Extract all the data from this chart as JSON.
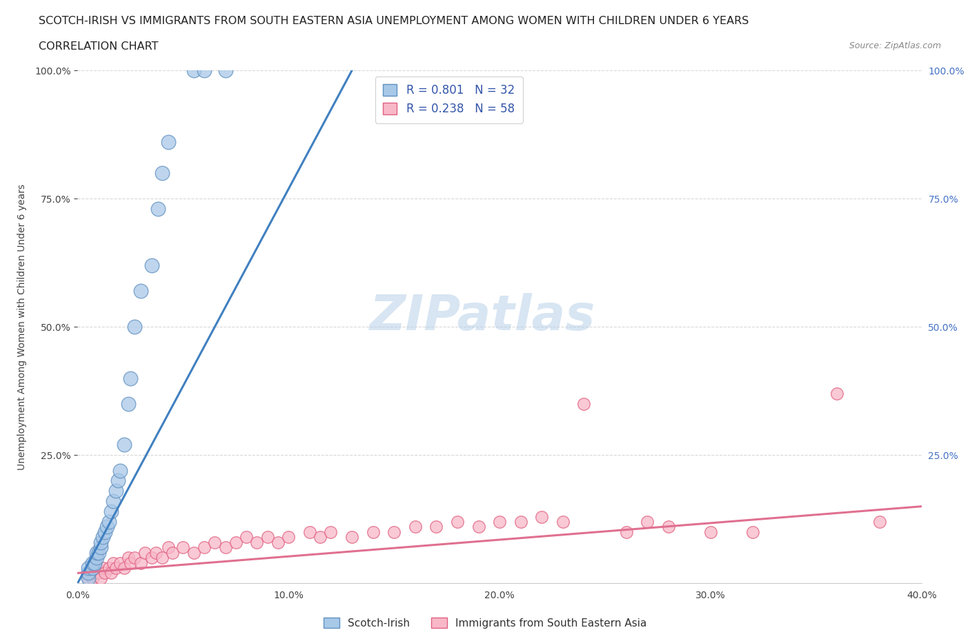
{
  "title_line1": "SCOTCH-IRISH VS IMMIGRANTS FROM SOUTH EASTERN ASIA UNEMPLOYMENT AMONG WOMEN WITH CHILDREN UNDER 6 YEARS",
  "title_line2": "CORRELATION CHART",
  "source": "Source: ZipAtlas.com",
  "ylabel": "Unemployment Among Women with Children Under 6 years",
  "xlim": [
    0.0,
    0.4
  ],
  "ylim": [
    0.0,
    1.0
  ],
  "xtick_values": [
    0.0,
    0.1,
    0.2,
    0.3,
    0.4
  ],
  "ytick_values": [
    0.25,
    0.5,
    0.75,
    1.0
  ],
  "watermark": "ZIPatlas",
  "legend_R1": "R = 0.801",
  "legend_N1": "N = 32",
  "legend_R2": "R = 0.238",
  "legend_N2": "N = 58",
  "color_blue": "#a8c8e8",
  "color_pink": "#f8b8c8",
  "edge_color_blue": "#6090c0",
  "edge_color_pink": "#e06080",
  "line_color_blue": "#4080c0",
  "line_color_pink": "#e07090",
  "scotch_irish_x": [
    0.005,
    0.005,
    0.005,
    0.007,
    0.007,
    0.008,
    0.009,
    0.009,
    0.01,
    0.011,
    0.011,
    0.012,
    0.013,
    0.014,
    0.015,
    0.016,
    0.017,
    0.018,
    0.019,
    0.02,
    0.022,
    0.024,
    0.025,
    0.027,
    0.03,
    0.035,
    0.038,
    0.04,
    0.043,
    0.055,
    0.06,
    0.07
  ],
  "scotch_irish_y": [
    0.01,
    0.02,
    0.03,
    0.03,
    0.04,
    0.04,
    0.05,
    0.06,
    0.06,
    0.07,
    0.08,
    0.09,
    0.1,
    0.11,
    0.12,
    0.14,
    0.16,
    0.18,
    0.2,
    0.22,
    0.27,
    0.35,
    0.4,
    0.5,
    0.57,
    0.62,
    0.73,
    0.8,
    0.86,
    1.0,
    1.0,
    1.0
  ],
  "sea_x": [
    0.005,
    0.006,
    0.007,
    0.008,
    0.009,
    0.01,
    0.011,
    0.012,
    0.013,
    0.015,
    0.016,
    0.017,
    0.018,
    0.02,
    0.022,
    0.024,
    0.025,
    0.027,
    0.03,
    0.032,
    0.035,
    0.037,
    0.04,
    0.043,
    0.045,
    0.05,
    0.055,
    0.06,
    0.065,
    0.07,
    0.075,
    0.08,
    0.085,
    0.09,
    0.095,
    0.1,
    0.11,
    0.115,
    0.12,
    0.13,
    0.14,
    0.15,
    0.16,
    0.17,
    0.18,
    0.19,
    0.2,
    0.21,
    0.22,
    0.23,
    0.24,
    0.26,
    0.27,
    0.28,
    0.3,
    0.32,
    0.36,
    0.38
  ],
  "sea_y": [
    0.01,
    0.02,
    0.01,
    0.02,
    0.03,
    0.02,
    0.01,
    0.03,
    0.02,
    0.03,
    0.02,
    0.04,
    0.03,
    0.04,
    0.03,
    0.05,
    0.04,
    0.05,
    0.04,
    0.06,
    0.05,
    0.06,
    0.05,
    0.07,
    0.06,
    0.07,
    0.06,
    0.07,
    0.08,
    0.07,
    0.08,
    0.09,
    0.08,
    0.09,
    0.08,
    0.09,
    0.1,
    0.09,
    0.1,
    0.09,
    0.1,
    0.1,
    0.11,
    0.11,
    0.12,
    0.11,
    0.12,
    0.12,
    0.13,
    0.12,
    0.35,
    0.1,
    0.12,
    0.11,
    0.1,
    0.1,
    0.37,
    0.12
  ],
  "title_fontsize": 11.5,
  "subtitle_fontsize": 11.5,
  "source_fontsize": 9,
  "ylabel_fontsize": 10,
  "tick_fontsize": 10,
  "legend_fontsize": 12,
  "watermark_fontsize": 52,
  "background_color": "#ffffff",
  "grid_color": "#d8d8d8",
  "blue_trendline_x": [
    0.0,
    0.13
  ],
  "blue_trendline_y": [
    0.0,
    1.0
  ],
  "pink_trendline_x": [
    0.0,
    0.4
  ],
  "pink_trendline_y": [
    0.02,
    0.15
  ]
}
